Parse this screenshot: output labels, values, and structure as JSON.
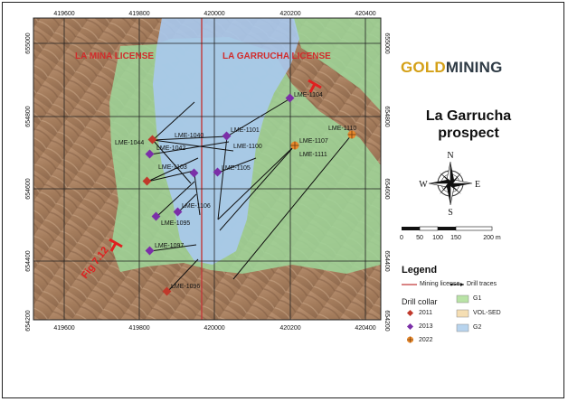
{
  "brand": {
    "gold": "GOLD",
    "mining": "MINING"
  },
  "prospect_title": [
    "La Garrucha",
    "prospect"
  ],
  "license_labels": {
    "la_mina": "LA MINA LICENSE",
    "la_garrucha": "LA GARRUCHA LICENSE"
  },
  "fig_label": "Fig 7.12",
  "grid": {
    "x_labels": [
      "419600",
      "419800",
      "420000",
      "420200",
      "420400"
    ],
    "y_labels": [
      "655000",
      "654800",
      "654600",
      "654400",
      "654200"
    ]
  },
  "compass": {
    "n": "N",
    "s": "S",
    "e": "E",
    "w": "W"
  },
  "scale_bar": {
    "labels": [
      "0",
      "50",
      "100",
      "150",
      "200 m"
    ]
  },
  "legend": {
    "title": "Legend",
    "mining_license": "Mining license",
    "drill_traces": "Drill traces",
    "drill_collar_title": "Drill collar",
    "collar_years": [
      {
        "label": "2011",
        "color": "#c0392b",
        "shape": "diamond"
      },
      {
        "label": "2013",
        "color": "#7b2fa8",
        "shape": "diamond"
      },
      {
        "label": "2022",
        "color": "#e8892c",
        "shape": "crossed-circle"
      }
    ],
    "units": [
      {
        "label": "G1",
        "color": "#b9e3a6"
      },
      {
        "label": "VOL-SED",
        "color": "#f5deb3"
      },
      {
        "label": "G2",
        "color": "#b8d4ee"
      }
    ]
  },
  "drill_holes": [
    {
      "id": "LME-1104",
      "year": "2013"
    },
    {
      "id": "LME-1110",
      "year": "2022"
    },
    {
      "id": "LME-1107",
      "year": "2022"
    },
    {
      "id": "LME-1111",
      "year": "2022"
    },
    {
      "id": "LME-1040",
      "year": "2013"
    },
    {
      "id": "LME-1044",
      "year": "2011"
    },
    {
      "id": "LME-1042",
      "year": "2013"
    },
    {
      "id": "LME-1101",
      "year": "2013"
    },
    {
      "id": "LME-1100",
      "year": "2013"
    },
    {
      "id": "LME-1103",
      "year": "2013"
    },
    {
      "id": "LME-1105",
      "year": "2013"
    },
    {
      "id": "LME-1106",
      "year": "2013"
    },
    {
      "id": "LME-1095",
      "year": "2013"
    },
    {
      "id": "LME-1097",
      "year": "2013"
    },
    {
      "id": "LME-1096",
      "year": "2011"
    }
  ],
  "colors": {
    "g1": "#9ed79a",
    "g2": "#a9c9ee",
    "volsed": "#c9a27c",
    "license_line": "#c23a3a",
    "fig_marker": "#e02020"
  }
}
